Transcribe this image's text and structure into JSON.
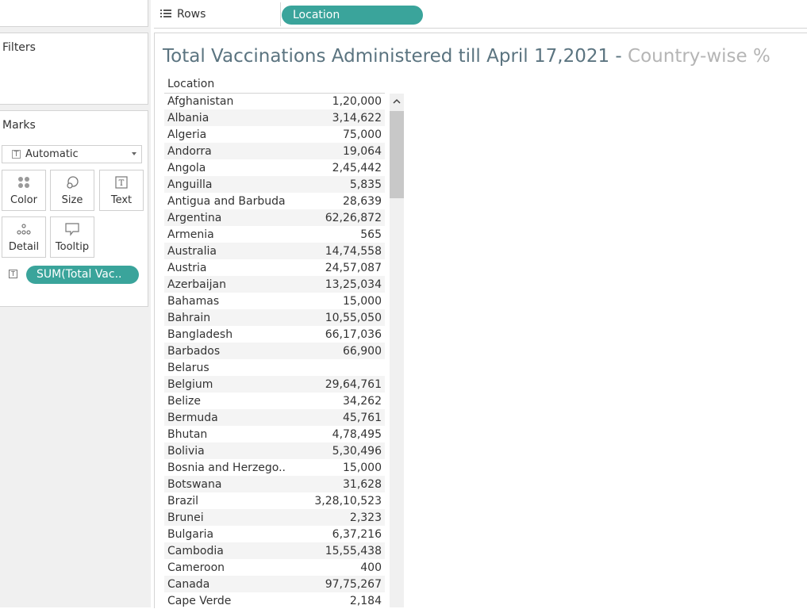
{
  "shelf": {
    "rows_label": "Rows",
    "rows_pill": "Location"
  },
  "filters": {
    "title": "Filters"
  },
  "marks": {
    "title": "Marks",
    "mark_type": "Automatic",
    "cards": [
      {
        "label": "Color",
        "icon": "color-icon"
      },
      {
        "label": "Size",
        "icon": "size-icon"
      },
      {
        "label": "Text",
        "icon": "text-icon"
      },
      {
        "label": "Detail",
        "icon": "detail-icon"
      },
      {
        "label": "Tooltip",
        "icon": "tooltip-icon"
      }
    ],
    "field_pill": "SUM(Total Vac.."
  },
  "viz": {
    "title": "Total Vaccinations Administered till April 17,2021 -",
    "subtitle": "Country-wise %",
    "column_header": "Location"
  },
  "table": {
    "rows": [
      {
        "location": "Afghanistan",
        "value": "1,20,000"
      },
      {
        "location": "Albania",
        "value": "3,14,622"
      },
      {
        "location": "Algeria",
        "value": "75,000"
      },
      {
        "location": "Andorra",
        "value": "19,064"
      },
      {
        "location": "Angola",
        "value": "2,45,442"
      },
      {
        "location": "Anguilla",
        "value": "5,835"
      },
      {
        "location": "Antigua and Barbuda",
        "value": "28,639"
      },
      {
        "location": "Argentina",
        "value": "62,26,872"
      },
      {
        "location": "Armenia",
        "value": "565"
      },
      {
        "location": "Australia",
        "value": "14,74,558"
      },
      {
        "location": "Austria",
        "value": "24,57,087"
      },
      {
        "location": "Azerbaijan",
        "value": "13,25,034"
      },
      {
        "location": "Bahamas",
        "value": "15,000"
      },
      {
        "location": "Bahrain",
        "value": "10,55,050"
      },
      {
        "location": "Bangladesh",
        "value": "66,17,036"
      },
      {
        "location": "Barbados",
        "value": "66,900"
      },
      {
        "location": "Belarus",
        "value": ""
      },
      {
        "location": "Belgium",
        "value": "29,64,761"
      },
      {
        "location": "Belize",
        "value": "34,262"
      },
      {
        "location": "Bermuda",
        "value": "45,761"
      },
      {
        "location": "Bhutan",
        "value": "4,78,495"
      },
      {
        "location": "Bolivia",
        "value": "5,30,496"
      },
      {
        "location": "Bosnia and Herzego..",
        "value": "15,000"
      },
      {
        "location": "Botswana",
        "value": "31,628"
      },
      {
        "location": "Brazil",
        "value": "3,28,10,523"
      },
      {
        "location": "Brunei",
        "value": "2,323"
      },
      {
        "location": "Bulgaria",
        "value": "6,37,216"
      },
      {
        "location": "Cambodia",
        "value": "15,55,438"
      },
      {
        "location": "Cameroon",
        "value": "400"
      },
      {
        "location": "Canada",
        "value": "97,75,267"
      },
      {
        "location": "Cape Verde",
        "value": "2,184"
      }
    ]
  },
  "colors": {
    "pill": "#3aa49b",
    "title": "#5b7480",
    "subtitle": "#b5b5b5"
  }
}
